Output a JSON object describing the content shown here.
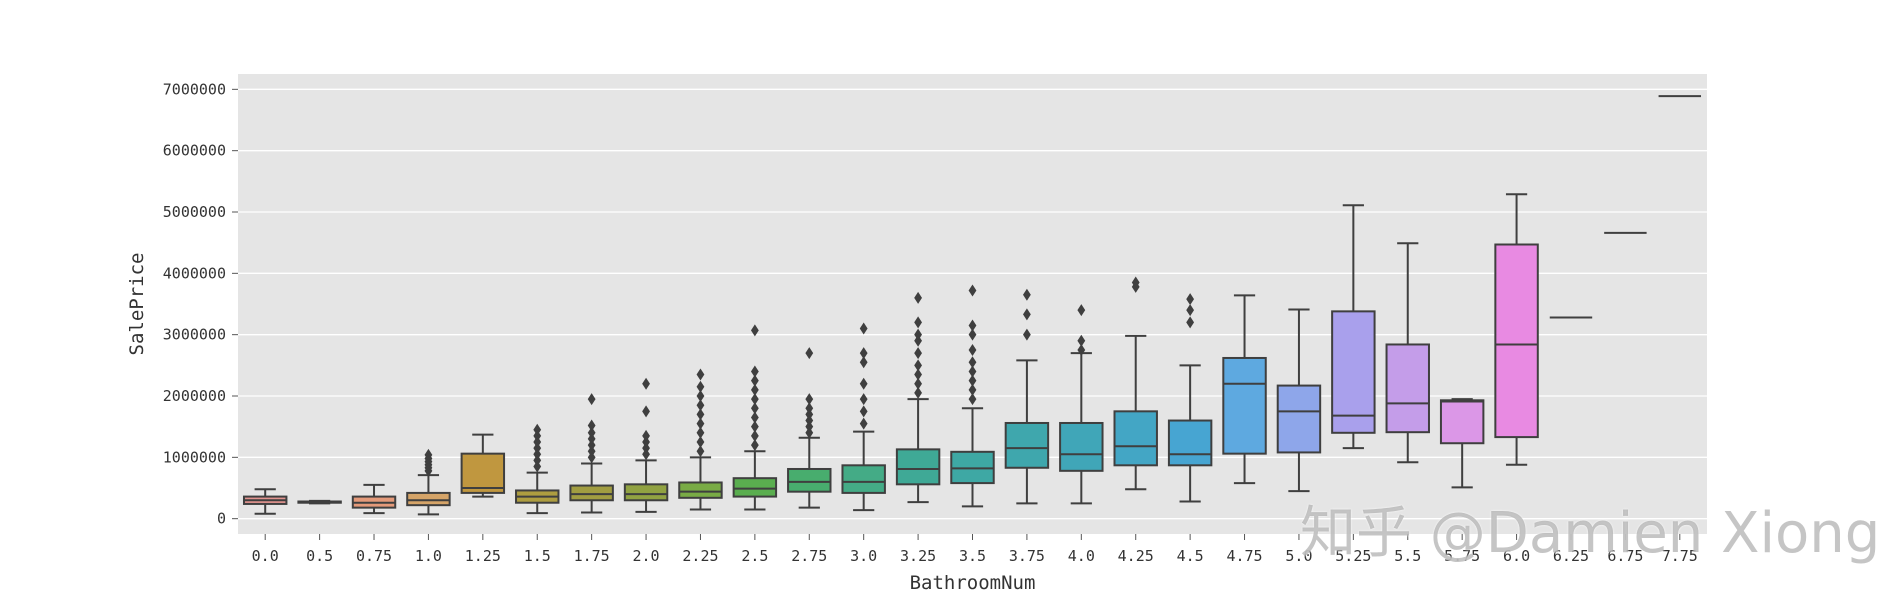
{
  "watermark": "知乎 @Damien Xiong",
  "chart_data": {
    "type": "box",
    "xlabel": "BathroomNum",
    "ylabel": "SalePrice",
    "ylim": [
      -250000,
      7250000
    ],
    "yticks": [
      0,
      1000000,
      2000000,
      3000000,
      4000000,
      5000000,
      6000000,
      7000000
    ],
    "ytick_labels": [
      "0",
      "1000000",
      "2000000",
      "3000000",
      "4000000",
      "5000000",
      "6000000",
      "7000000"
    ],
    "grid": true,
    "background": "#e5e5e5",
    "categories": [
      "0.0",
      "0.5",
      "0.75",
      "1.0",
      "1.25",
      "1.5",
      "1.75",
      "2.0",
      "2.25",
      "2.5",
      "2.75",
      "3.0",
      "3.25",
      "3.5",
      "3.75",
      "4.0",
      "4.25",
      "4.5",
      "4.75",
      "5.0",
      "5.25",
      "5.5",
      "5.75",
      "6.0",
      "6.25",
      "6.75",
      "7.75"
    ],
    "boxes": [
      {
        "whislo": 80000,
        "q1": 240000,
        "med": 300000,
        "q3": 360000,
        "whishi": 480000,
        "fliers": [],
        "color": "#e1938f"
      },
      {
        "whislo": 250000,
        "q1": 260000,
        "med": 270000,
        "q3": 280000,
        "whishi": 290000,
        "fliers": [],
        "color": "#e1938f"
      },
      {
        "whislo": 90000,
        "q1": 180000,
        "med": 260000,
        "q3": 360000,
        "whishi": 550000,
        "fliers": [],
        "color": "#e49a7a"
      },
      {
        "whislo": 70000,
        "q1": 220000,
        "med": 300000,
        "q3": 420000,
        "whishi": 710000,
        "fliers": [
          780000,
          830000,
          880000,
          930000,
          980000,
          1040000
        ],
        "color": "#d5a468"
      },
      {
        "whislo": 360000,
        "q1": 420000,
        "med": 500000,
        "q3": 1060000,
        "whishi": 1370000,
        "fliers": [],
        "color": "#c0973f"
      },
      {
        "whislo": 90000,
        "q1": 260000,
        "med": 360000,
        "q3": 460000,
        "whishi": 750000,
        "fliers": [
          850000,
          950000,
          1050000,
          1150000,
          1250000,
          1350000,
          1450000
        ],
        "color": "#ad9d40"
      },
      {
        "whislo": 100000,
        "q1": 300000,
        "med": 400000,
        "q3": 540000,
        "whishi": 900000,
        "fliers": [
          1000000,
          1100000,
          1200000,
          1300000,
          1400000,
          1520000,
          1950000
        ],
        "color": "#a19d41"
      },
      {
        "whislo": 110000,
        "q1": 300000,
        "med": 400000,
        "q3": 560000,
        "whishi": 950000,
        "fliers": [
          1050000,
          1150000,
          1250000,
          1350000,
          1750000,
          2200000
        ],
        "color": "#91a242"
      },
      {
        "whislo": 150000,
        "q1": 340000,
        "med": 440000,
        "q3": 590000,
        "whishi": 1000000,
        "fliers": [
          1100000,
          1250000,
          1400000,
          1550000,
          1700000,
          1850000,
          2000000,
          2150000,
          2350000
        ],
        "color": "#79ab45"
      },
      {
        "whislo": 150000,
        "q1": 360000,
        "med": 490000,
        "q3": 660000,
        "whishi": 1100000,
        "fliers": [
          1200000,
          1350000,
          1500000,
          1650000,
          1800000,
          1950000,
          2100000,
          2250000,
          2400000,
          3070000
        ],
        "color": "#5aae4f"
      },
      {
        "whislo": 180000,
        "q1": 440000,
        "med": 600000,
        "q3": 810000,
        "whishi": 1320000,
        "fliers": [
          1400000,
          1500000,
          1600000,
          1700000,
          1800000,
          1950000,
          2700000
        ],
        "color": "#48ad6e"
      },
      {
        "whislo": 140000,
        "q1": 420000,
        "med": 600000,
        "q3": 870000,
        "whishi": 1420000,
        "fliers": [
          1550000,
          1750000,
          1950000,
          2200000,
          2550000,
          2700000,
          3100000
        ],
        "color": "#44ab86"
      },
      {
        "whislo": 270000,
        "q1": 560000,
        "med": 810000,
        "q3": 1130000,
        "whishi": 1950000,
        "fliers": [
          2050000,
          2200000,
          2350000,
          2500000,
          2700000,
          2900000,
          3000000,
          3200000,
          3600000
        ],
        "color": "#3fa996"
      },
      {
        "whislo": 200000,
        "q1": 580000,
        "med": 820000,
        "q3": 1090000,
        "whishi": 1800000,
        "fliers": [
          1950000,
          2100000,
          2250000,
          2400000,
          2550000,
          2750000,
          3000000,
          3150000,
          3720000
        ],
        "color": "#3ea8a4"
      },
      {
        "whislo": 250000,
        "q1": 830000,
        "med": 1150000,
        "q3": 1560000,
        "whishi": 2580000,
        "fliers": [
          3000000,
          3330000,
          3650000
        ],
        "color": "#3fa7ad"
      },
      {
        "whislo": 250000,
        "q1": 780000,
        "med": 1050000,
        "q3": 1560000,
        "whishi": 2700000,
        "fliers": [
          2750000,
          2900000,
          3400000
        ],
        "color": "#40a6b8"
      },
      {
        "whislo": 480000,
        "q1": 870000,
        "med": 1180000,
        "q3": 1750000,
        "whishi": 2980000,
        "fliers": [
          3780000,
          3850000
        ],
        "color": "#43a6c5"
      },
      {
        "whislo": 280000,
        "q1": 870000,
        "med": 1050000,
        "q3": 1600000,
        "whishi": 2500000,
        "fliers": [
          3200000,
          3400000,
          3580000
        ],
        "color": "#47a5d2"
      },
      {
        "whislo": 580000,
        "q1": 1060000,
        "med": 2200000,
        "q3": 2620000,
        "whishi": 3640000,
        "fliers": [],
        "color": "#5ea9e0"
      },
      {
        "whislo": 450000,
        "q1": 1080000,
        "med": 1750000,
        "q3": 2170000,
        "whishi": 3410000,
        "fliers": [],
        "color": "#8ea6ea"
      },
      {
        "whislo": 1150000,
        "q1": 1400000,
        "med": 1680000,
        "q3": 3380000,
        "whishi": 5110000,
        "fliers": [],
        "color": "#a9a0ec"
      },
      {
        "whislo": 920000,
        "q1": 1410000,
        "med": 1880000,
        "q3": 2840000,
        "whishi": 4490000,
        "fliers": [],
        "color": "#c49de9"
      },
      {
        "whislo": 510000,
        "q1": 1230000,
        "med": 1910000,
        "q3": 1930000,
        "whishi": 1950000,
        "fliers": [],
        "color": "#db97e7"
      },
      {
        "whislo": 880000,
        "q1": 1330000,
        "med": 2840000,
        "q3": 4470000,
        "whishi": 5290000,
        "fliers": [],
        "color": "#e88ae2"
      },
      {
        "whislo": 3280000,
        "q1": 3280000,
        "med": 3280000,
        "q3": 3280000,
        "whishi": 3280000,
        "fliers": [],
        "color": "#eb88d6"
      },
      {
        "whislo": 4660000,
        "q1": 4660000,
        "med": 4660000,
        "q3": 4660000,
        "whishi": 4660000,
        "fliers": [],
        "color": "#ec89cc"
      },
      {
        "whislo": 6890000,
        "q1": 6890000,
        "med": 6890000,
        "q3": 6890000,
        "whishi": 6890000,
        "fliers": [],
        "color": "#ee8ac0"
      }
    ]
  }
}
